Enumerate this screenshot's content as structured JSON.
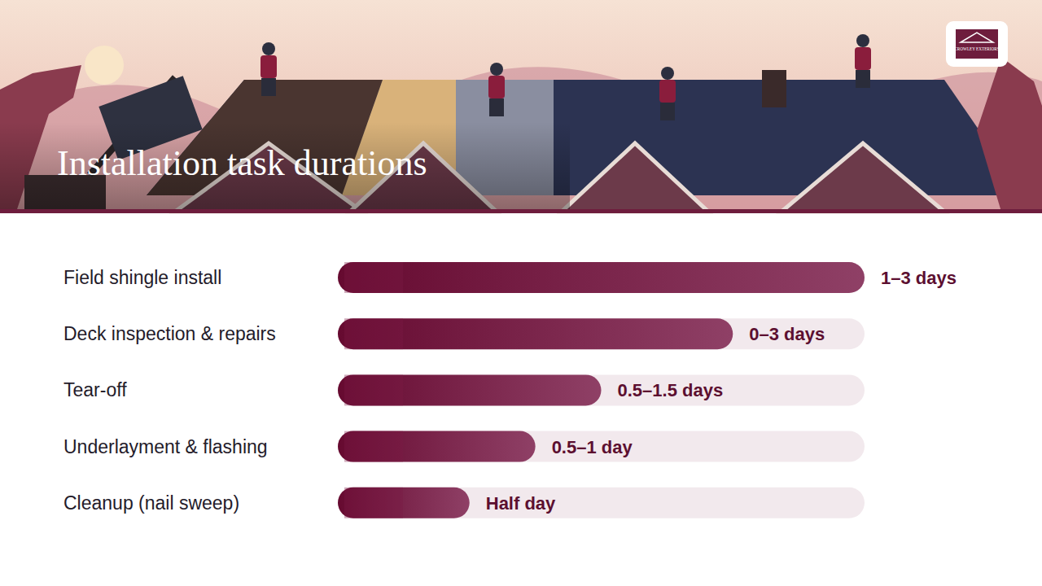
{
  "logo": "CROWLEY EXTERIORS",
  "chart_data": {
    "type": "bar",
    "orientation": "horizontal",
    "title": "Installation task durations",
    "categories": [
      "Field shingle install",
      "Deck inspection & repairs",
      "Tear-off",
      "Underlayment & flashing",
      "Cleanup (nail sweep)"
    ],
    "values": [
      2,
      1.5,
      1,
      0.75,
      0.5
    ],
    "value_labels": [
      "1–3 days",
      "0–3 days",
      "0.5–1.5 days",
      "0.5–1 day",
      "Half day"
    ],
    "xlim": [
      0,
      2
    ],
    "color": "#7a1a45",
    "data_labels": true,
    "tick_labels": false
  }
}
